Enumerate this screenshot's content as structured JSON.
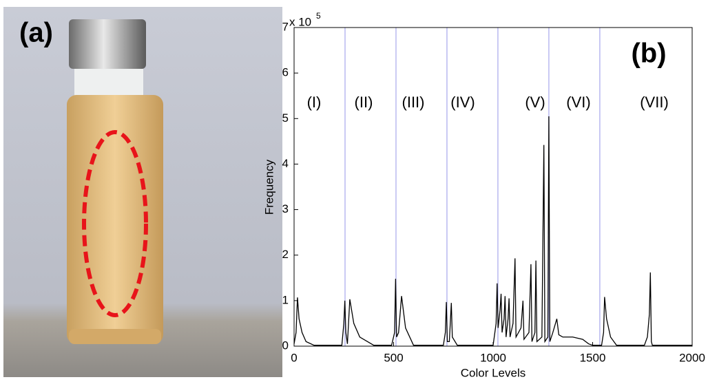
{
  "panel_a": {
    "label": "(a)"
  },
  "chart_data": {
    "type": "line",
    "panel_label": "(b)",
    "xlabel": "Color Levels",
    "ylabel": "Frequency",
    "y_multiplier": "x 10",
    "y_multiplier_exponent": "5",
    "xlim": [
      0,
      2000
    ],
    "ylim": [
      0,
      7
    ],
    "xticks": [
      0,
      500,
      1000,
      1500,
      2000
    ],
    "yticks": [
      0,
      1,
      2,
      3,
      4,
      5,
      6,
      7
    ],
    "color": "#000000",
    "dividers": {
      "x": [
        256,
        512,
        768,
        1024,
        1280,
        1536
      ],
      "color": "#b8b8f0"
    },
    "regions": [
      "(I)",
      "(II)",
      "(III)",
      "(IV)",
      "(V)",
      "(VI)",
      "(VII)"
    ],
    "x": [
      0,
      10,
      17,
      25,
      40,
      60,
      100,
      240,
      250,
      255,
      260,
      268,
      280,
      300,
      330,
      400,
      490,
      505,
      510,
      515,
      525,
      540,
      560,
      600,
      750,
      760,
      765,
      770,
      780,
      790,
      795,
      820,
      1000,
      1015,
      1020,
      1025,
      1035,
      1040,
      1045,
      1055,
      1060,
      1065,
      1075,
      1080,
      1085,
      1100,
      1110,
      1115,
      1140,
      1150,
      1155,
      1180,
      1190,
      1195,
      1210,
      1215,
      1220,
      1245,
      1255,
      1260,
      1275,
      1280,
      1285,
      1300,
      1320,
      1330,
      1350,
      1400,
      1450,
      1480,
      1500,
      1545,
      1555,
      1560,
      1570,
      1590,
      1620,
      1760,
      1775,
      1785,
      1790,
      1795,
      1800,
      2000
    ],
    "values": [
      0.05,
      0.3,
      1.07,
      0.6,
      0.3,
      0.1,
      0.02,
      0.02,
      0.5,
      1.0,
      0.3,
      0.05,
      1.03,
      0.5,
      0.2,
      0.02,
      0.02,
      0.3,
      1.48,
      0.2,
      0.3,
      1.1,
      0.4,
      0.02,
      0.02,
      0.3,
      0.97,
      0.1,
      0.1,
      0.95,
      0.2,
      0.02,
      0.02,
      0.5,
      1.38,
      0.4,
      0.8,
      1.15,
      0.3,
      0.6,
      1.1,
      0.2,
      0.6,
      1.05,
      0.2,
      0.5,
      1.93,
      0.2,
      0.4,
      1.0,
      0.15,
      0.3,
      1.8,
      0.1,
      0.3,
      1.88,
      0.1,
      0.2,
      4.42,
      0.1,
      0.2,
      5.05,
      0.1,
      0.3,
      0.6,
      0.25,
      0.2,
      0.2,
      0.15,
      0.05,
      0.02,
      0.02,
      0.3,
      1.08,
      0.6,
      0.2,
      0.02,
      0.02,
      0.2,
      0.7,
      1.62,
      0.1,
      0.02,
      0.02
    ]
  }
}
